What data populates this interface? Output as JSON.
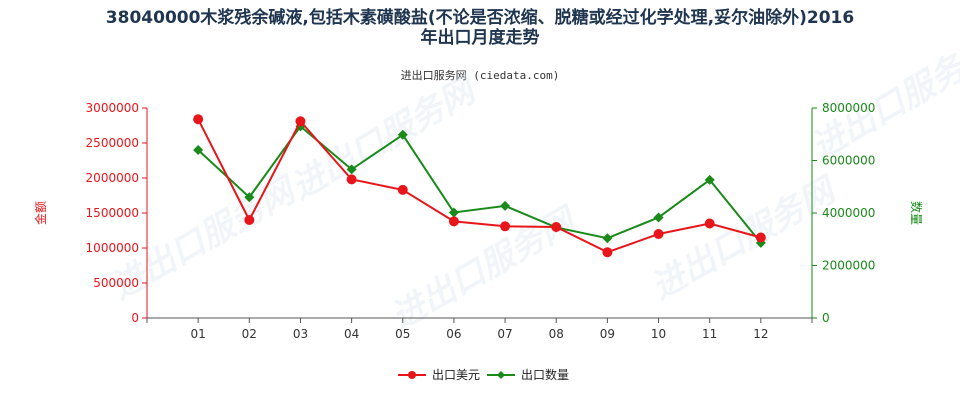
{
  "title_line1": "38040000木浆残余碱液,包括木素磺酸盐(不论是否浓缩、脱糖或经过化学处理,妥尔油除外)2016",
  "title_line2": "年出口月度走势",
  "source": "进出口服务网 (ciedata.com)",
  "watermark": "进出口服务网",
  "colors": {
    "amount": "#e8161b",
    "quantity": "#1a8a1a",
    "axis_left": "#e8161b",
    "axis_right": "#1a8a1a"
  },
  "chart_data": {
    "type": "line",
    "title": "38040000木浆残余碱液,包括木素磺酸盐(不论是否浓缩、脱糖或经过化学处理,妥尔油除外)2016年出口月度走势",
    "categories": [
      "01",
      "02",
      "03",
      "04",
      "05",
      "06",
      "07",
      "08",
      "09",
      "10",
      "11",
      "12"
    ],
    "y_left": {
      "label": "金额",
      "ylim": [
        0,
        3000000
      ],
      "ticks": [
        0,
        500000,
        1000000,
        1500000,
        2000000,
        2500000,
        3000000
      ]
    },
    "y_right": {
      "label": "数量",
      "ylim": [
        0,
        8000000
      ],
      "ticks": [
        0,
        2000000,
        4000000,
        6000000,
        8000000
      ]
    },
    "series": [
      {
        "name": "出口美元",
        "axis": "left",
        "marker": "circle",
        "values": [
          2840000,
          1400000,
          2810000,
          1980000,
          1830000,
          1380000,
          1310000,
          1300000,
          940000,
          1200000,
          1350000,
          1150000
        ]
      },
      {
        "name": "出口数量",
        "axis": "right",
        "marker": "diamond",
        "values": [
          6400000,
          4600000,
          7300000,
          5660000,
          6980000,
          4020000,
          4270000,
          3450000,
          3040000,
          3830000,
          5260000,
          2860000
        ]
      }
    ],
    "legend": "bottom-center",
    "grid": false
  }
}
